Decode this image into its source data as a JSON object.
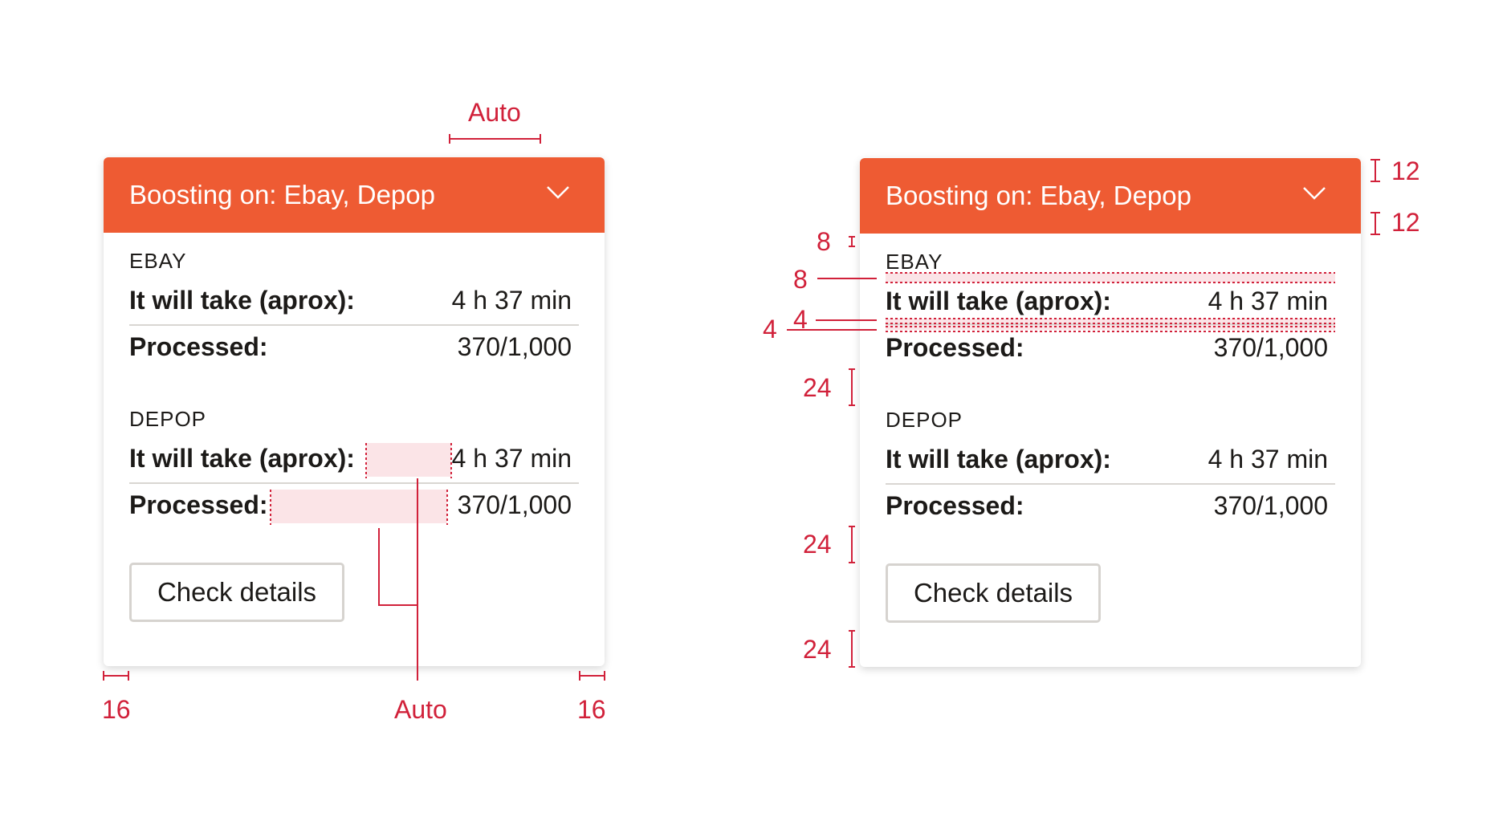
{
  "colors": {
    "accent": "#ee5b33",
    "annotation": "#d1213a",
    "highlight": "#fbe4e7",
    "divider": "#d9d6d2"
  },
  "cards": [
    {
      "header_title": "Boosting on: Ebay, Depop",
      "chevron_icon": "chevron-down-icon",
      "sections": [
        {
          "label": "EBAY",
          "rows": [
            {
              "label": "It will take (aprox):",
              "value": "4 h 37 min"
            },
            {
              "label": "Processed:",
              "value": "370/1,000"
            }
          ]
        },
        {
          "label": "DEPOP",
          "rows": [
            {
              "label": "It will take (aprox):",
              "value": "4 h 37 min"
            },
            {
              "label": "Processed:",
              "value": "370/1,000"
            }
          ]
        }
      ],
      "button_label": "Check details"
    },
    {
      "header_title": "Boosting on: Ebay, Depop",
      "chevron_icon": "chevron-down-icon",
      "sections": [
        {
          "label": "EBAY",
          "rows": [
            {
              "label": "It will take (aprox):",
              "value": "4 h 37 min"
            },
            {
              "label": "Processed:",
              "value": "370/1,000"
            }
          ]
        },
        {
          "label": "DEPOP",
          "rows": [
            {
              "label": "It will take (aprox):",
              "value": "4 h 37 min"
            },
            {
              "label": "Processed:",
              "value": "370/1,000"
            }
          ]
        }
      ],
      "button_label": "Check details"
    }
  ],
  "annotations": {
    "auto_top": "Auto",
    "auto_bottom": "Auto",
    "padding_left": "16",
    "padding_right": "16",
    "header_top": "12",
    "header_bottom": "12",
    "after_header": "8",
    "label_gap": "8",
    "row_gap_inner": "4",
    "row_gap_outer": "4",
    "section_gap": "24",
    "button_gap": "24",
    "bottom_gap": "24"
  }
}
